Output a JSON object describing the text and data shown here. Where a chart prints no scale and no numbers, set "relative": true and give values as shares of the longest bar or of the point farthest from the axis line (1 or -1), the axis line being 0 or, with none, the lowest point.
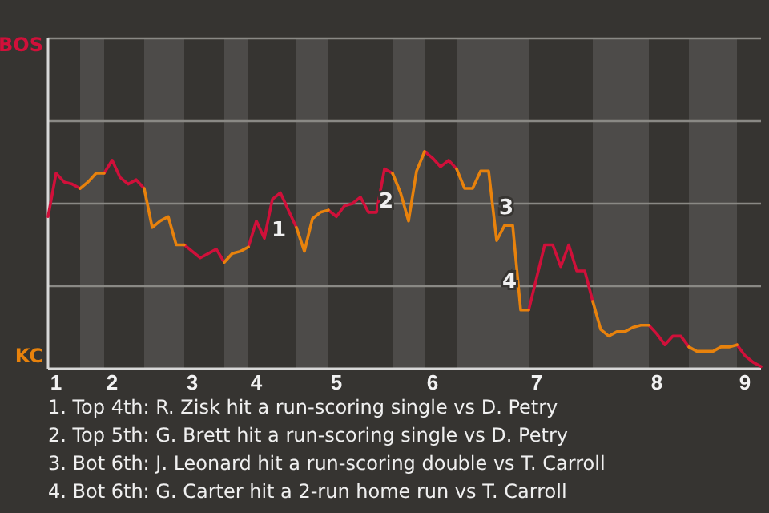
{
  "chart_data": {
    "type": "line",
    "relative": true,
    "categories": [
      null,
      "1",
      null,
      null,
      null,
      null,
      null,
      null,
      "2",
      null,
      null,
      null,
      null,
      null,
      null,
      null,
      null,
      null,
      "3",
      null,
      null,
      null,
      null,
      null,
      null,
      null,
      "4",
      null,
      null,
      null,
      null,
      null,
      null,
      null,
      null,
      null,
      "5",
      null,
      null,
      null,
      null,
      null,
      null,
      null,
      null,
      null,
      null,
      null,
      "6",
      null,
      null,
      null,
      null,
      null,
      null,
      null,
      null,
      null,
      null,
      null,
      null,
      "7",
      null,
      null,
      null,
      null,
      null,
      null,
      null,
      null,
      null,
      null,
      null,
      null,
      null,
      null,
      "8",
      null,
      null,
      null,
      null,
      null,
      null,
      null,
      null,
      null,
      null,
      "9",
      null,
      null
    ],
    "series": [
      {
        "name": "BOS",
        "color": "#d0103a",
        "values": [
          0.7,
          0.9,
          0.86,
          0.85,
          0.83,
          null,
          null,
          0.9,
          0.96,
          0.88,
          0.85,
          0.87,
          0.83,
          null,
          null,
          null,
          null,
          0.57,
          0.54,
          0.51,
          0.53,
          0.55,
          0.49,
          null,
          null,
          0.56,
          0.68,
          0.6,
          0.78,
          0.81,
          0.73,
          0.65,
          null,
          null,
          null,
          0.73,
          0.7,
          0.75,
          0.76,
          0.79,
          0.72,
          0.72,
          0.92,
          0.9,
          null,
          null,
          null,
          1,
          0.97,
          0.93,
          0.96,
          0.92,
          null,
          null,
          null,
          null,
          null,
          null,
          null,
          null,
          0.27,
          0.42,
          0.57,
          0.57,
          0.47,
          0.57,
          0.45,
          0.45,
          0.31,
          null,
          null,
          null,
          null,
          null,
          null,
          0.2,
          0.16,
          0.11,
          0.15,
          0.15,
          0.1,
          null,
          null,
          null,
          null,
          null,
          0.11,
          0.06,
          0.03,
          0.01
        ]
      },
      {
        "name": "KC",
        "color": "#e8820c",
        "values": [
          null,
          null,
          null,
          null,
          0.83,
          0.86,
          0.9,
          0.9,
          null,
          null,
          null,
          null,
          0.83,
          0.65,
          0.68,
          0.7,
          0.57,
          0.57,
          null,
          null,
          null,
          null,
          0.49,
          0.53,
          0.54,
          0.56,
          null,
          null,
          null,
          null,
          null,
          0.65,
          0.54,
          0.69,
          0.72,
          0.73,
          null,
          null,
          null,
          null,
          null,
          null,
          null,
          0.9,
          0.81,
          0.68,
          0.91,
          1,
          null,
          null,
          null,
          0.92,
          0.83,
          0.83,
          0.91,
          0.91,
          0.59,
          0.66,
          0.66,
          0.27,
          0.27,
          null,
          null,
          null,
          null,
          null,
          null,
          null,
          0.31,
          0.18,
          0.15,
          0.17,
          0.17,
          0.19,
          0.2,
          0.2,
          null,
          null,
          null,
          null,
          0.1,
          0.08,
          0.08,
          0.08,
          0.1,
          0.1,
          0.11,
          null,
          null,
          null
        ]
      }
    ],
    "ref_lines": [
      {
        "axis": "y",
        "value": 0.38
      },
      {
        "axis": "y",
        "value": 0.76
      },
      {
        "axis": "y",
        "value": 1.14
      },
      {
        "axis": "y",
        "value": 1.52
      }
    ],
    "annotations": [
      "1",
      "2",
      "3",
      "4",
      "1. Top 4th: R. Zisk hit a run-scoring single vs D. Petry",
      "2. Top 5th: G. Brett hit a run-scoring single vs D. Petry",
      "3. Bot 6th: J. Leonard hit a run-scoring double vs T. Carroll",
      "4. Bot 6th: G. Carter hit a 2-run home run vs T. Carroll"
    ]
  }
}
